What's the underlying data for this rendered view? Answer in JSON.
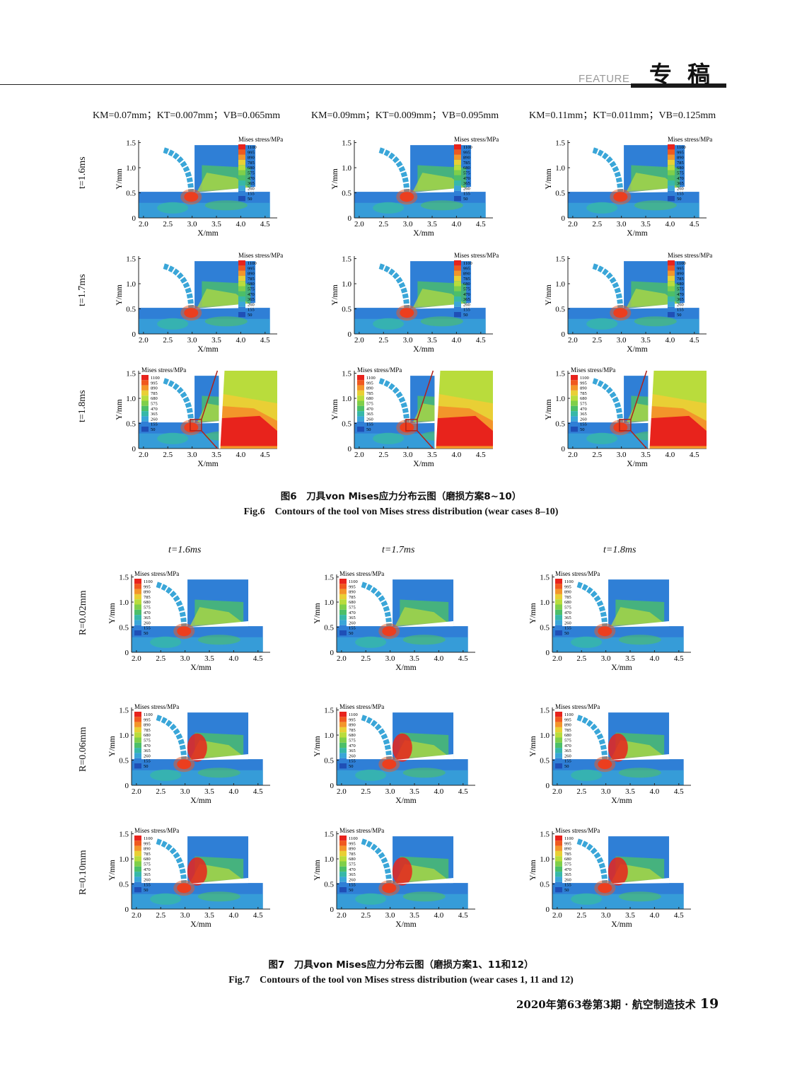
{
  "header": {
    "feature": "FEATURE",
    "title": "专稿"
  },
  "fig6": {
    "column_headers": [
      "KM=0.07mm；KT=0.007mm；VB=0.065mm",
      "KM=0.09mm；KT=0.009mm；VB=0.095mm",
      "KM=0.11mm；KT=0.011mm；VB=0.125mm"
    ],
    "row_labels": [
      "t=1.6ms",
      "t=1.7ms",
      "t=1.8ms"
    ],
    "caption_cn": "图6　刀具von Mises应力分布云图（磨损方案8~10）",
    "caption_en": "Fig.6　Contours of the tool von Mises stress distribution (wear cases 8–10)"
  },
  "fig7": {
    "column_headers": [
      "t=1.6ms",
      "t=1.7ms",
      "t=1.8ms"
    ],
    "row_labels": [
      "R=0.02mm",
      "R=0.06mm",
      "R=0.10mm"
    ],
    "caption_cn": "图7　刀具von Mises应力分布云图（磨损方案1、11和12）",
    "caption_en": "Fig.7　Contours of the tool von Mises stress distribution (wear cases 1, 11 and 12)"
  },
  "plot": {
    "legend_title": "Mises stress/MPa",
    "legend_levels": [
      "1100",
      "995",
      "890",
      "785",
      "680",
      "575",
      "470",
      "365",
      "260",
      "155",
      "50"
    ],
    "legend_colors": [
      "#e8231c",
      "#f0591f",
      "#f3952a",
      "#e9cf35",
      "#b9dc3c",
      "#7fcf4a",
      "#4cbf68",
      "#37b8a8",
      "#3aa6d8",
      "#2f7fd6",
      "#1f4fb6"
    ],
    "x_ticks": [
      "2.0",
      "2.5",
      "3.0",
      "3.5",
      "4.0",
      "4.5"
    ],
    "y_ticks": [
      "0",
      "0.5",
      "1.0",
      "1.5"
    ],
    "xlabel": "X/mm",
    "ylabel": "Y/mm"
  },
  "footer": {
    "text": "2020年第63卷第3期 · 航空制造技术",
    "page": "19"
  }
}
